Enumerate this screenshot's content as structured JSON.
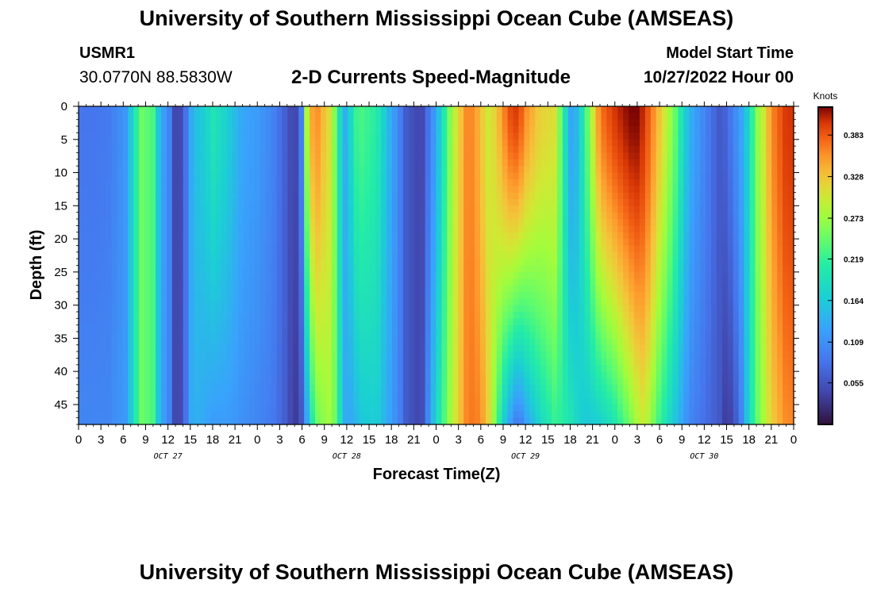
{
  "header": {
    "title": "University of Southern Mississippi Ocean Cube (AMSEAS)",
    "station_id": "USMR1",
    "station_coords": "30.0770N  88.5830W",
    "plot_title": "2-D Currents Speed-Magnitude",
    "model_start_label": "Model Start Time",
    "model_start_value": "10/27/2022 Hour 00"
  },
  "footer": {
    "title": "University of Southern Mississippi Ocean Cube (AMSEAS)"
  },
  "chart_data": {
    "type": "heatmap",
    "title": "2-D Currents Speed-Magnitude",
    "xlabel": "Forecast Time(Z)",
    "ylabel": "Depth (ft)",
    "x_ticks": [
      "0",
      "3",
      "6",
      "9",
      "12",
      "15",
      "18",
      "21",
      "0",
      "3",
      "6",
      "9",
      "12",
      "15",
      "18",
      "21",
      "0",
      "3",
      "6",
      "9",
      "12",
      "15",
      "18",
      "21",
      "0",
      "3",
      "6",
      "9",
      "12",
      "15",
      "18",
      "21",
      "0"
    ],
    "x_range_hours": [
      0,
      96
    ],
    "day_labels": [
      {
        "label": "OCT 27",
        "hour": 12
      },
      {
        "label": "OCT 28",
        "hour": 36
      },
      {
        "label": "OCT 29",
        "hour": 60
      },
      {
        "label": "OCT 30",
        "hour": 84
      }
    ],
    "y_ticks": [
      "0",
      "5",
      "10",
      "15",
      "20",
      "25",
      "30",
      "35",
      "40",
      "45"
    ],
    "y_range": [
      0,
      48
    ],
    "colorbar": {
      "label": "Knots",
      "ticks": [
        "0.055",
        "0.109",
        "0.164",
        "0.219",
        "0.273",
        "0.328",
        "0.383"
      ],
      "range": [
        0.0,
        0.42
      ]
    },
    "speed_profile_knots": {
      "hours": [
        0,
        2,
        4,
        5,
        6.5,
        7.5,
        8.5,
        10,
        11,
        12,
        13,
        14,
        15,
        16,
        17,
        18,
        20,
        22,
        24,
        26,
        28,
        29,
        30,
        30.5,
        31,
        32,
        34,
        35,
        36,
        37,
        38,
        40,
        42,
        43,
        44,
        46,
        48,
        50,
        52,
        53,
        54,
        55,
        56,
        57,
        58,
        59,
        60,
        62,
        64,
        66,
        66.5,
        67,
        68,
        70,
        72,
        74,
        75,
        76,
        78,
        80,
        82,
        84,
        86,
        87,
        88,
        89,
        90,
        91,
        92,
        93,
        94,
        95,
        96
      ],
      "surface": [
        0.085,
        0.085,
        0.09,
        0.1,
        0.12,
        0.2,
        0.25,
        0.23,
        0.13,
        0.11,
        0.04,
        0.05,
        0.13,
        0.16,
        0.17,
        0.2,
        0.17,
        0.13,
        0.12,
        0.1,
        0.06,
        0.035,
        0.1,
        0.26,
        0.34,
        0.36,
        0.3,
        0.19,
        0.13,
        0.22,
        0.23,
        0.21,
        0.13,
        0.1,
        0.06,
        0.04,
        0.13,
        0.27,
        0.36,
        0.36,
        0.33,
        0.3,
        0.32,
        0.36,
        0.39,
        0.4,
        0.36,
        0.32,
        0.31,
        0.13,
        0.13,
        0.15,
        0.22,
        0.37,
        0.4,
        0.42,
        0.42,
        0.4,
        0.33,
        0.25,
        0.14,
        0.1,
        0.06,
        0.07,
        0.1,
        0.13,
        0.18,
        0.26,
        0.3,
        0.36,
        0.38,
        0.4,
        0.4
      ],
      "bottom": [
        0.1,
        0.1,
        0.1,
        0.11,
        0.12,
        0.2,
        0.25,
        0.23,
        0.13,
        0.11,
        0.04,
        0.05,
        0.13,
        0.14,
        0.13,
        0.12,
        0.12,
        0.11,
        0.1,
        0.09,
        0.06,
        0.03,
        0.06,
        0.1,
        0.18,
        0.25,
        0.28,
        0.2,
        0.12,
        0.14,
        0.16,
        0.17,
        0.12,
        0.1,
        0.06,
        0.04,
        0.18,
        0.28,
        0.36,
        0.37,
        0.36,
        0.32,
        0.25,
        0.17,
        0.12,
        0.08,
        0.12,
        0.18,
        0.22,
        0.2,
        0.19,
        0.18,
        0.16,
        0.17,
        0.2,
        0.25,
        0.28,
        0.3,
        0.22,
        0.16,
        0.1,
        0.08,
        0.06,
        0.03,
        0.05,
        0.1,
        0.18,
        0.24,
        0.28,
        0.32,
        0.34,
        0.36,
        0.36
      ]
    }
  }
}
